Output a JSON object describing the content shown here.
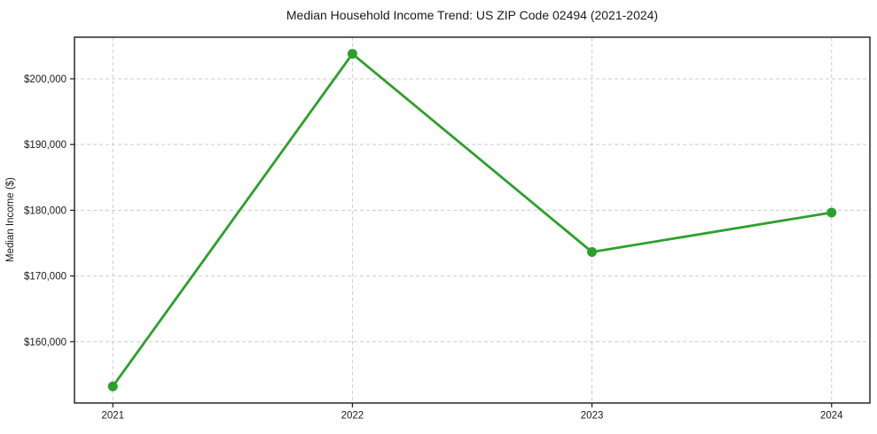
{
  "figure": {
    "background": "#ffffff"
  },
  "chart_data": {
    "type": "line",
    "title": "Median Household Income Trend: US ZIP Code 02494 (2021-2024)",
    "xlabel": "",
    "ylabel": "Median Income ($)",
    "x": [
      2021,
      2022,
      2023,
      2024
    ],
    "series": [
      {
        "name": "Median Income ($)",
        "values": [
          153200,
          203800,
          173650,
          179650
        ]
      }
    ],
    "xticks": {
      "values": [
        2021,
        2022,
        2023,
        2024
      ],
      "labels": [
        "2021",
        "2022",
        "2023",
        "2024"
      ]
    },
    "yticks": {
      "values": [
        160000,
        170000,
        180000,
        190000,
        200000
      ],
      "labels": [
        "$160,000",
        "$170,000",
        "$180,000",
        "$190,000",
        "$200,000"
      ]
    },
    "xlim": [
      2020.84,
      2024.16
    ],
    "ylim": [
      150670,
      206330
    ],
    "grid": true,
    "grid_style": "dashed",
    "legend": "none",
    "colors": {
      "line": "#2ca02c",
      "marker": "#2ca02c",
      "grid": "#cccccc",
      "spine": "#1a1a1a",
      "text": "#1a1a1a"
    }
  }
}
